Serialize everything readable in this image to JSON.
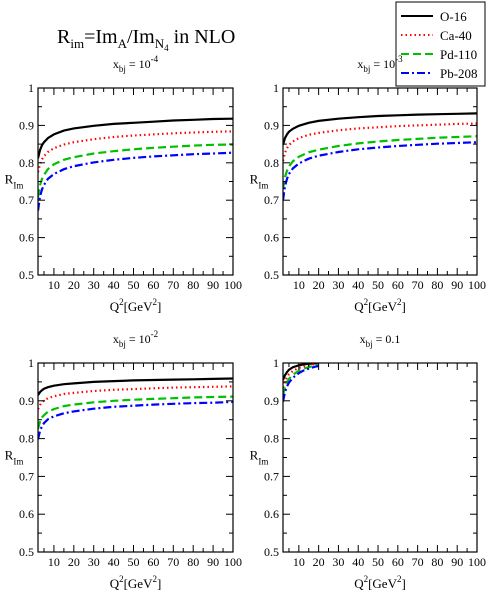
{
  "figure": {
    "title": {
      "parts": [
        {
          "t": "R",
          "s": "n"
        },
        {
          "t": "im",
          "s": "sub"
        },
        {
          "t": "=Im",
          "s": "n"
        },
        {
          "t": "A",
          "s": "sub"
        },
        {
          "t": "/Im",
          "s": "n"
        },
        {
          "t": "N",
          "s": "sub"
        },
        {
          "t": "4",
          "s": "subsub"
        },
        {
          "t": " in NLO",
          "s": "n"
        }
      ]
    },
    "legend": {
      "placement": "top-right",
      "entries": [
        {
          "label": "O-16",
          "color": "#000000",
          "dash": "solid"
        },
        {
          "label": "Ca-40",
          "color": "#ff0000",
          "dash": "dotted"
        },
        {
          "label": "Pd-110",
          "color": "#00c000",
          "dash": "dashed"
        },
        {
          "label": "Pb-208",
          "color": "#0000ff",
          "dash": "dashdot"
        }
      ]
    },
    "ylabel": {
      "main": "R",
      "sub": "Im"
    },
    "xlabel": {
      "q": "Q",
      "sup": "2",
      "unit": "[GeV",
      "unit_sup": "2",
      "close": "]"
    }
  },
  "chart_data": [
    {
      "type": "line",
      "title": {
        "base": "x",
        "sub": "bj",
        "eq": " = 10",
        "sup": "-4"
      },
      "xlim": [
        2,
        100
      ],
      "ylim": [
        0.5,
        1.0
      ],
      "xticks": [
        10,
        20,
        30,
        40,
        50,
        60,
        70,
        80,
        90,
        100
      ],
      "yticks": [
        0.5,
        0.6,
        0.7,
        0.8,
        0.9,
        1.0
      ],
      "ytick_labels": [
        "0.5",
        "0.6",
        "0.7",
        "0.8",
        "0.9",
        "1"
      ],
      "series": [
        {
          "name": "O-16",
          "x": [
            2,
            3,
            4,
            5,
            7,
            10,
            15,
            20,
            30,
            40,
            50,
            60,
            70,
            80,
            90,
            100
          ],
          "y": [
            0.812,
            0.834,
            0.847,
            0.855,
            0.866,
            0.876,
            0.886,
            0.892,
            0.899,
            0.904,
            0.907,
            0.91,
            0.913,
            0.915,
            0.917,
            0.918
          ]
        },
        {
          "name": "Ca-40",
          "x": [
            2,
            3,
            4,
            5,
            7,
            10,
            15,
            20,
            30,
            40,
            50,
            60,
            70,
            80,
            90,
            100
          ],
          "y": [
            0.775,
            0.796,
            0.809,
            0.818,
            0.829,
            0.839,
            0.849,
            0.855,
            0.863,
            0.869,
            0.873,
            0.876,
            0.879,
            0.881,
            0.883,
            0.884
          ]
        },
        {
          "name": "Pd-110",
          "x": [
            2,
            3,
            4,
            5,
            7,
            10,
            15,
            20,
            30,
            40,
            50,
            60,
            70,
            80,
            90,
            100
          ],
          "y": [
            0.708,
            0.74,
            0.757,
            0.768,
            0.783,
            0.796,
            0.808,
            0.815,
            0.825,
            0.831,
            0.836,
            0.84,
            0.843,
            0.846,
            0.848,
            0.849
          ]
        },
        {
          "name": "Pb-208",
          "x": [
            2,
            3,
            4,
            5,
            7,
            10,
            15,
            20,
            30,
            40,
            50,
            60,
            70,
            80,
            90,
            100
          ],
          "y": [
            0.672,
            0.71,
            0.729,
            0.741,
            0.757,
            0.77,
            0.783,
            0.791,
            0.801,
            0.808,
            0.813,
            0.817,
            0.82,
            0.823,
            0.825,
            0.827
          ]
        }
      ]
    },
    {
      "type": "line",
      "title": {
        "base": "x",
        "sub": "bj",
        "eq": " = 10",
        "sup": "-3"
      },
      "xlim": [
        2,
        100
      ],
      "ylim": [
        0.5,
        1.0
      ],
      "xticks": [
        10,
        20,
        30,
        40,
        50,
        60,
        70,
        80,
        90,
        100
      ],
      "yticks": [
        0.5,
        0.6,
        0.7,
        0.8,
        0.9,
        1.0
      ],
      "ytick_labels": [
        "0.5",
        "0.6",
        "0.7",
        "0.8",
        "0.9",
        "1"
      ],
      "series": [
        {
          "name": "O-16",
          "x": [
            2,
            3,
            4,
            5,
            7,
            10,
            15,
            20,
            30,
            40,
            50,
            60,
            70,
            80,
            90,
            100
          ],
          "y": [
            0.848,
            0.866,
            0.876,
            0.883,
            0.891,
            0.899,
            0.907,
            0.912,
            0.918,
            0.922,
            0.925,
            0.927,
            0.929,
            0.93,
            0.931,
            0.932
          ]
        },
        {
          "name": "Ca-40",
          "x": [
            2,
            3,
            4,
            5,
            7,
            10,
            15,
            20,
            30,
            40,
            50,
            60,
            70,
            80,
            90,
            100
          ],
          "y": [
            0.805,
            0.827,
            0.839,
            0.847,
            0.857,
            0.866,
            0.875,
            0.88,
            0.887,
            0.892,
            0.895,
            0.898,
            0.9,
            0.902,
            0.904,
            0.905
          ]
        },
        {
          "name": "Pd-110",
          "x": [
            2,
            3,
            4,
            5,
            7,
            10,
            15,
            20,
            30,
            40,
            50,
            60,
            70,
            80,
            90,
            100
          ],
          "y": [
            0.73,
            0.762,
            0.779,
            0.79,
            0.804,
            0.816,
            0.828,
            0.835,
            0.845,
            0.852,
            0.857,
            0.861,
            0.864,
            0.867,
            0.869,
            0.871
          ]
        },
        {
          "name": "Pb-208",
          "x": [
            2,
            3,
            4,
            5,
            7,
            10,
            15,
            20,
            30,
            40,
            50,
            60,
            70,
            80,
            90,
            100
          ],
          "y": [
            0.7,
            0.738,
            0.757,
            0.77,
            0.785,
            0.798,
            0.811,
            0.819,
            0.829,
            0.836,
            0.841,
            0.845,
            0.848,
            0.851,
            0.853,
            0.855
          ]
        }
      ]
    },
    {
      "type": "line",
      "title": {
        "base": "x",
        "sub": "bj",
        "eq": " = 10",
        "sup": "-2"
      },
      "xlim": [
        2,
        100
      ],
      "ylim": [
        0.5,
        1.0
      ],
      "xticks": [
        10,
        20,
        30,
        40,
        50,
        60,
        70,
        80,
        90,
        100
      ],
      "yticks": [
        0.5,
        0.6,
        0.7,
        0.8,
        0.9,
        1.0
      ],
      "ytick_labels": [
        "0.5",
        "0.6",
        "0.7",
        "0.8",
        "0.9",
        "1"
      ],
      "series": [
        {
          "name": "O-16",
          "x": [
            2,
            3,
            4,
            5,
            7,
            10,
            15,
            20,
            30,
            40,
            50,
            60,
            70,
            80,
            90,
            100
          ],
          "y": [
            0.915,
            0.923,
            0.928,
            0.932,
            0.936,
            0.94,
            0.944,
            0.946,
            0.95,
            0.952,
            0.954,
            0.955,
            0.956,
            0.957,
            0.958,
            0.959
          ]
        },
        {
          "name": "Ca-40",
          "x": [
            2,
            3,
            4,
            5,
            7,
            10,
            15,
            20,
            30,
            40,
            50,
            60,
            70,
            80,
            90,
            100
          ],
          "y": [
            0.878,
            0.889,
            0.896,
            0.901,
            0.907,
            0.912,
            0.918,
            0.921,
            0.926,
            0.929,
            0.931,
            0.933,
            0.935,
            0.936,
            0.937,
            0.938
          ]
        },
        {
          "name": "Pd-110",
          "x": [
            2,
            3,
            4,
            5,
            7,
            10,
            15,
            20,
            30,
            40,
            50,
            60,
            70,
            80,
            90,
            100
          ],
          "y": [
            0.826,
            0.845,
            0.856,
            0.862,
            0.871,
            0.878,
            0.886,
            0.89,
            0.896,
            0.9,
            0.903,
            0.905,
            0.907,
            0.909,
            0.91,
            0.911
          ]
        },
        {
          "name": "Pb-208",
          "x": [
            2,
            3,
            4,
            5,
            7,
            10,
            15,
            20,
            30,
            40,
            50,
            60,
            70,
            80,
            90,
            100
          ],
          "y": [
            0.798,
            0.82,
            0.833,
            0.841,
            0.851,
            0.859,
            0.867,
            0.872,
            0.879,
            0.884,
            0.887,
            0.89,
            0.892,
            0.894,
            0.895,
            0.897
          ]
        }
      ]
    },
    {
      "type": "line",
      "title": {
        "base": "x",
        "sub": "bj",
        "eq": " = 0.1",
        "sup": ""
      },
      "xlim": [
        2,
        100
      ],
      "ylim": [
        0.5,
        1.0
      ],
      "xticks": [
        10,
        20,
        30,
        40,
        50,
        60,
        70,
        80,
        90,
        100
      ],
      "yticks": [
        0.5,
        0.6,
        0.7,
        0.8,
        0.9,
        1.0
      ],
      "ytick_labels": [
        "0.5",
        "0.6",
        "0.7",
        "0.8",
        "0.9",
        "1"
      ],
      "series": [
        {
          "name": "O-16",
          "x": [
            2,
            3,
            4,
            5,
            7,
            10,
            12,
            15,
            18,
            20
          ],
          "y": [
            0.955,
            0.968,
            0.976,
            0.982,
            0.989,
            0.994,
            0.996,
            0.998,
            0.999,
            1.0
          ]
        },
        {
          "name": "Ca-40",
          "x": [
            2,
            3,
            4,
            5,
            7,
            10,
            12,
            15,
            18,
            20
          ],
          "y": [
            0.935,
            0.952,
            0.963,
            0.97,
            0.979,
            0.987,
            0.99,
            0.994,
            0.997,
            0.998
          ]
        },
        {
          "name": "Pd-110",
          "x": [
            2,
            3,
            4,
            5,
            7,
            10,
            12,
            15,
            18,
            20
          ],
          "y": [
            0.915,
            0.936,
            0.949,
            0.958,
            0.969,
            0.979,
            0.984,
            0.989,
            0.993,
            0.995
          ]
        },
        {
          "name": "Pb-208",
          "x": [
            2,
            3,
            4,
            5,
            7,
            10,
            12,
            15,
            18,
            20
          ],
          "y": [
            0.898,
            0.923,
            0.938,
            0.948,
            0.961,
            0.973,
            0.979,
            0.985,
            0.99,
            0.992
          ]
        }
      ]
    }
  ]
}
